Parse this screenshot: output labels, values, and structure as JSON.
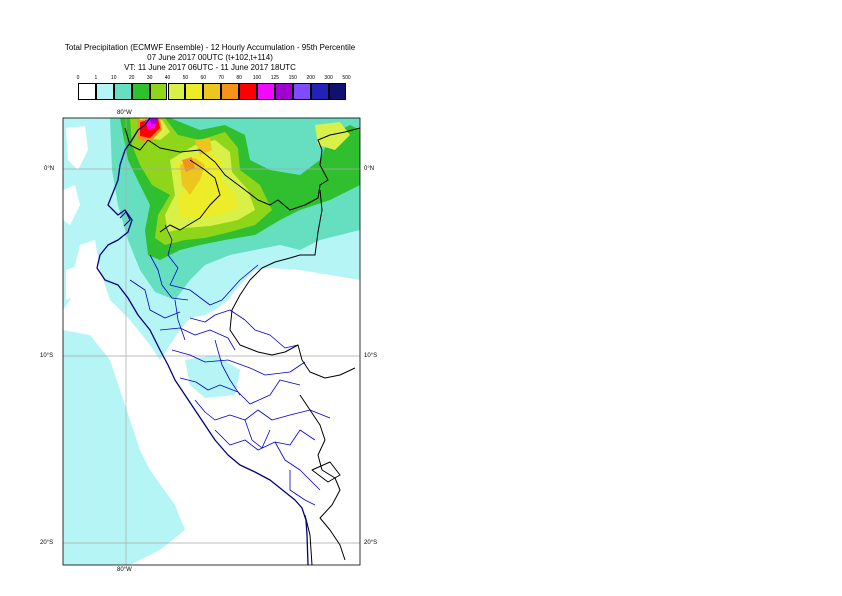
{
  "title": {
    "line1": "Total Precipitation (ECMWF Ensemble) - 12 Hourly Accumulation - 95th Percentile",
    "line2": "07 June 2017 00UTC (t+102,t+114)",
    "line3": "VT: 11 June 2017 06UTC - 11 June 2017 18UTC"
  },
  "colorbar": {
    "levels": [
      "0",
      "1",
      "10",
      "20",
      "30",
      "40",
      "50",
      "60",
      "70",
      "80",
      "100",
      "125",
      "150",
      "200",
      "300",
      "500"
    ],
    "colors": [
      "#ffffff",
      "#b6f5f5",
      "#66dfc1",
      "#2fbf2f",
      "#8fd61a",
      "#d8f048",
      "#ecec28",
      "#ecc61e",
      "#f79318",
      "#ff0000",
      "#f00aff",
      "#a000d0",
      "#7f4dff",
      "#2222b8",
      "#101070"
    ]
  },
  "map": {
    "meridian_label_top": "80°W",
    "meridian_label_bottom": "80°W",
    "lat_labels_left": [
      "0°N",
      "10°S",
      "20°S"
    ],
    "lat_labels_right": [
      "0°N",
      "10°S",
      "20°S"
    ],
    "colors": {
      "ocean_light": "#b6f5f5",
      "teal": "#66dfc1",
      "green": "#2fbf2f",
      "yellow_green": "#8fd61a",
      "light_yellow": "#d8f048",
      "yellow": "#ecec28",
      "gold": "#ecc61e",
      "orange": "#f79318",
      "red": "#ff0000",
      "magenta": "#f00aff",
      "purple": "#a000d0",
      "dept_border": "#0000cc",
      "country_border": "#000000",
      "coast": "#000080"
    }
  }
}
